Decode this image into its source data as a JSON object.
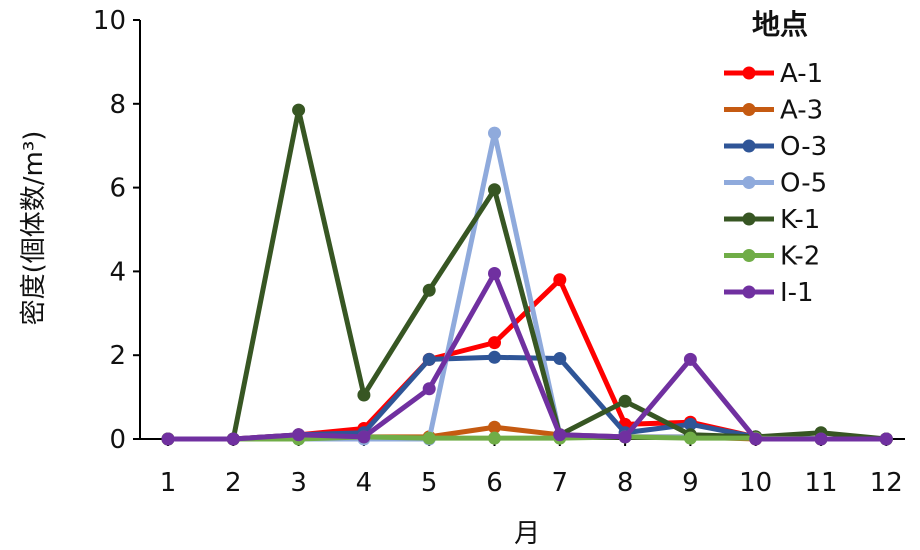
{
  "chart_data": {
    "type": "line",
    "xlabel": "月",
    "ylabel": "密度(個体数/m³)",
    "x": [
      1,
      2,
      3,
      4,
      5,
      6,
      7,
      8,
      9,
      10,
      11,
      12
    ],
    "xticks": [
      "1",
      "2",
      "3",
      "4",
      "5",
      "6",
      "7",
      "8",
      "9",
      "10",
      "11",
      "12"
    ],
    "ylim": [
      0,
      10
    ],
    "yticks": [
      "0",
      "2",
      "4",
      "6",
      "8",
      "10"
    ],
    "grid": false,
    "legend": {
      "title": "地点",
      "position": "top-right"
    },
    "series": [
      {
        "name": "A-1",
        "color": "#ff0000",
        "values": [
          0,
          0,
          0.1,
          0.25,
          1.9,
          2.3,
          3.8,
          0.35,
          0.4,
          0.05,
          0,
          0
        ]
      },
      {
        "name": "A-3",
        "color": "#c55a11",
        "values": [
          0,
          0,
          0.05,
          0.05,
          0.05,
          0.28,
          0.1,
          0.05,
          0.05,
          0,
          0,
          0
        ]
      },
      {
        "name": "O-3",
        "color": "#2f5597",
        "values": [
          0,
          0,
          0.1,
          0.15,
          1.9,
          1.95,
          1.92,
          0.15,
          0.35,
          0.05,
          0,
          0
        ]
      },
      {
        "name": "O-5",
        "color": "#8faadc",
        "values": [
          0,
          0,
          0,
          0,
          0,
          7.3,
          0.1,
          0.05,
          0.05,
          0.05,
          0,
          0
        ]
      },
      {
        "name": "K-1",
        "color": "#375623",
        "values": [
          0,
          0,
          7.85,
          1.05,
          3.55,
          5.95,
          0.1,
          0.9,
          0.1,
          0.05,
          0.15,
          0
        ]
      },
      {
        "name": "K-2",
        "color": "#70ad47",
        "values": [
          0,
          0,
          0,
          0.05,
          0.02,
          0.02,
          0.02,
          0.05,
          0.02,
          0.02,
          0,
          0
        ]
      },
      {
        "name": "I-1",
        "color": "#7030a0",
        "values": [
          0,
          0,
          0.1,
          0.05,
          1.2,
          3.95,
          0.1,
          0.05,
          1.9,
          0,
          0,
          0
        ]
      }
    ]
  }
}
